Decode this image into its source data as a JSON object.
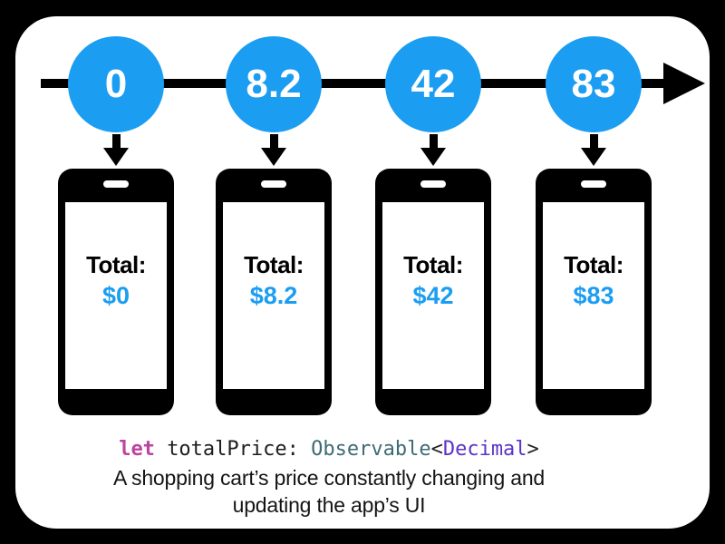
{
  "colors": {
    "background": "#000000",
    "card": "#ffffff",
    "accent_blue": "#1B9DF2",
    "arrow_black": "#000000",
    "code_keyword": "#BC44A0",
    "code_plain": "#1D1D1F",
    "code_type": "#3E6B75",
    "code_generic": "#5B33C9",
    "code_bracket": "#222222",
    "caption_text": "#141414"
  },
  "timeline": {
    "phone_label": "Total:",
    "events": [
      {
        "marble": "0",
        "screen_value": "$0"
      },
      {
        "marble": "8.2",
        "screen_value": "$8.2"
      },
      {
        "marble": "42",
        "screen_value": "$42"
      },
      {
        "marble": "83",
        "screen_value": "$83"
      }
    ]
  },
  "code": {
    "keyword": "let",
    "variable": " totalPrice: ",
    "type": "Observable",
    "open_bracket": "<",
    "generic": "Decimal",
    "close_bracket": ">"
  },
  "caption": {
    "line1": "A shopping cart’s price constantly changing and",
    "line2": "updating the app’s UI"
  }
}
